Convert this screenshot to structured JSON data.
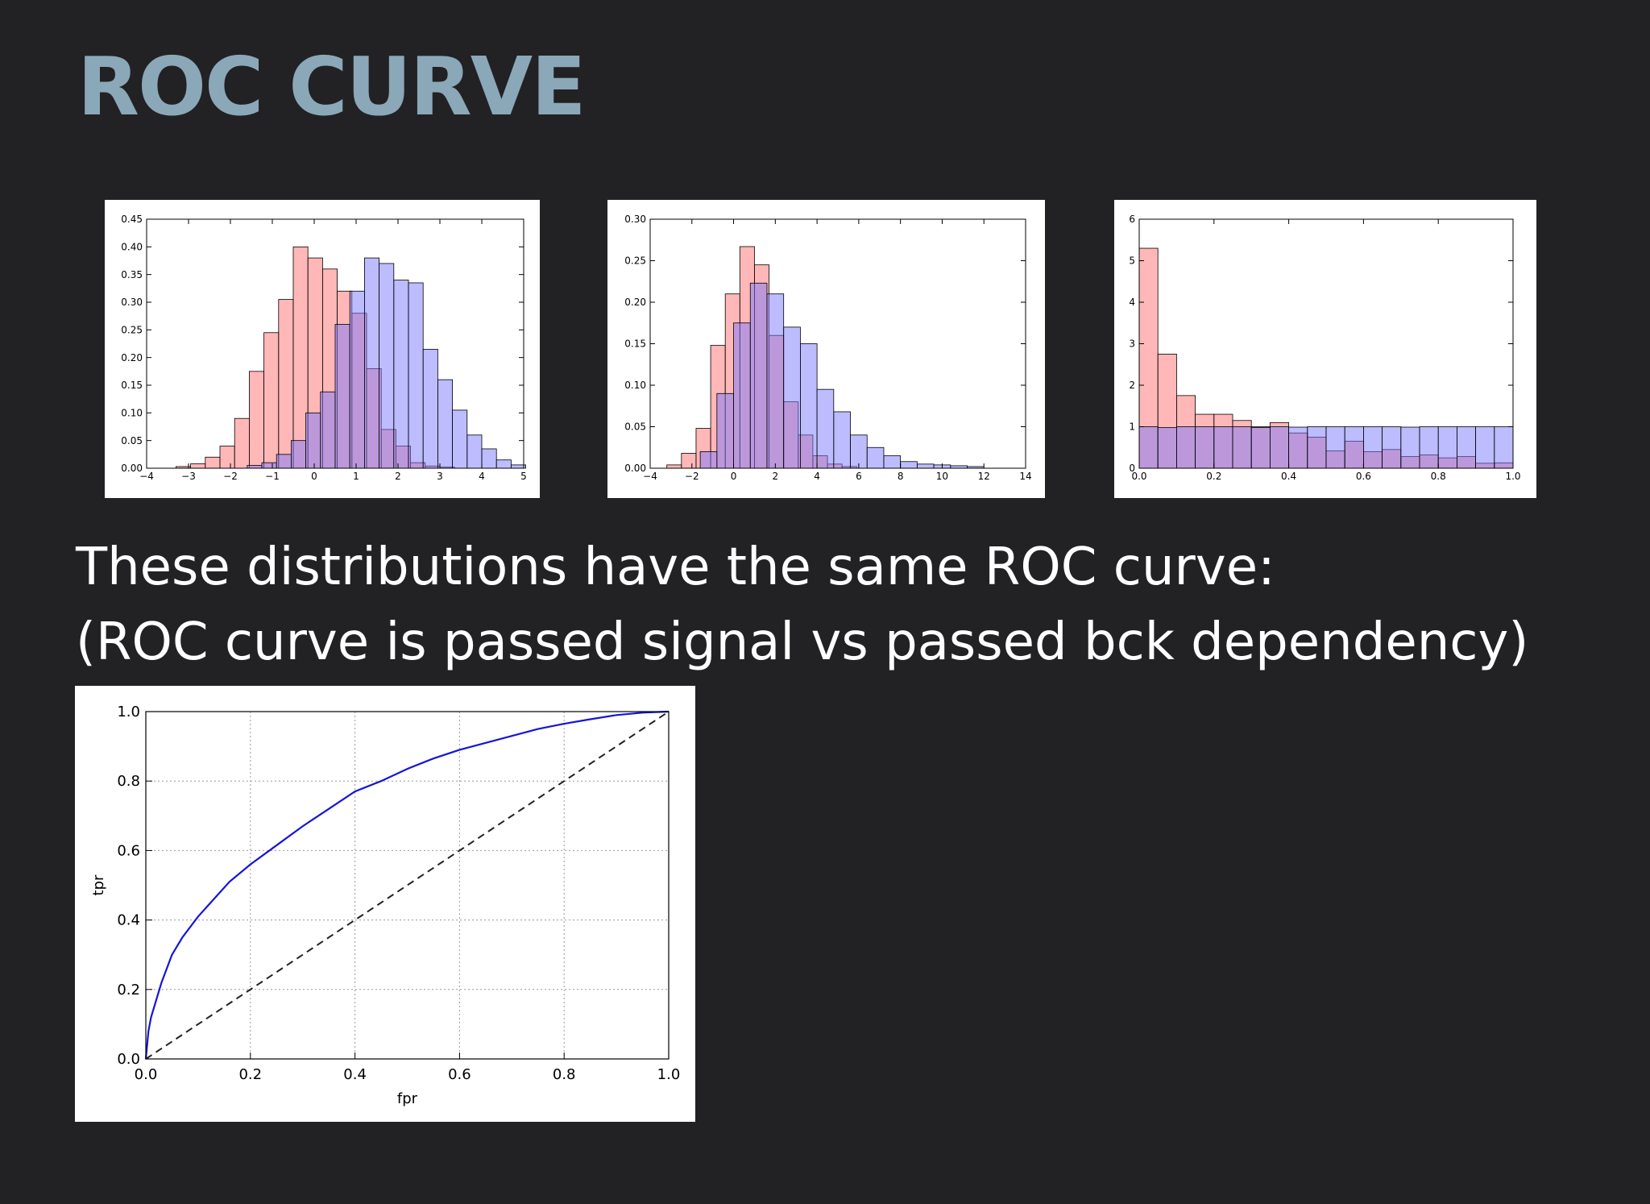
{
  "slide": {
    "title": "ROC CURVE",
    "caption_line1": "These distributions have the same ROC curve:",
    "caption_line2": "(ROC curve is passed signal vs passed bck dependency)"
  },
  "colors": {
    "background": "#222124",
    "title": "#8aa8b8",
    "red_series": "#ff7070",
    "blue_series": "#7a7aff",
    "overlap": "#7b3fc2",
    "roc_line": "#1515d8"
  },
  "chart_data": [
    {
      "type": "bar",
      "variant": "histogram",
      "xlim": [
        -4,
        5
      ],
      "ylim": [
        0,
        0.45
      ],
      "xticks": [
        "−4",
        "−3",
        "−2",
        "−1",
        "0",
        "1",
        "2",
        "3",
        "4",
        "5"
      ],
      "yticks": [
        "0.00",
        "0.05",
        "0.10",
        "0.15",
        "0.20",
        "0.25",
        "0.30",
        "0.35",
        "0.40",
        "0.45"
      ],
      "series": [
        {
          "color": "red",
          "bin_start": -3.3,
          "bin_width": 0.35,
          "values": [
            0.003,
            0.008,
            0.02,
            0.04,
            0.09,
            0.175,
            0.245,
            0.305,
            0.4,
            0.38,
            0.36,
            0.32,
            0.28,
            0.18,
            0.07,
            0.04,
            0.01,
            0.004,
            0.002
          ]
        },
        {
          "color": "blue",
          "bin_start": -1.6,
          "bin_width": 0.35,
          "values": [
            0.005,
            0.01,
            0.025,
            0.05,
            0.1,
            0.138,
            0.26,
            0.32,
            0.38,
            0.37,
            0.34,
            0.335,
            0.215,
            0.16,
            0.105,
            0.06,
            0.035,
            0.015,
            0.006
          ]
        }
      ]
    },
    {
      "type": "bar",
      "variant": "histogram",
      "xlim": [
        -4,
        14
      ],
      "ylim": [
        0,
        0.3
      ],
      "xticks": [
        "−4",
        "−2",
        "0",
        "2",
        "4",
        "6",
        "8",
        "10",
        "12",
        "14"
      ],
      "yticks": [
        "0.00",
        "0.05",
        "0.10",
        "0.15",
        "0.20",
        "0.25",
        "0.30"
      ],
      "series": [
        {
          "color": "red",
          "bin_start": -3.2,
          "bin_width": 0.7,
          "values": [
            0.004,
            0.018,
            0.048,
            0.148,
            0.21,
            0.267,
            0.245,
            0.16,
            0.08,
            0.04,
            0.015,
            0.005,
            0.002
          ]
        },
        {
          "color": "blue",
          "bin_start": -1.6,
          "bin_width": 0.8,
          "values": [
            0.02,
            0.09,
            0.175,
            0.223,
            0.21,
            0.17,
            0.15,
            0.095,
            0.068,
            0.04,
            0.025,
            0.015,
            0.008,
            0.005,
            0.004,
            0.003,
            0.002
          ]
        }
      ]
    },
    {
      "type": "bar",
      "variant": "histogram",
      "xlim": [
        0,
        1
      ],
      "ylim": [
        0,
        6
      ],
      "xticks": [
        "0.0",
        "0.2",
        "0.4",
        "0.6",
        "0.8",
        "1.0"
      ],
      "yticks": [
        "0",
        "1",
        "2",
        "3",
        "4",
        "5",
        "6"
      ],
      "series": [
        {
          "color": "red",
          "bin_start": 0,
          "bin_width": 0.05,
          "values": [
            5.3,
            2.75,
            1.75,
            1.3,
            1.3,
            1.15,
            1.0,
            1.1,
            0.85,
            0.75,
            0.42,
            0.65,
            0.4,
            0.45,
            0.28,
            0.32,
            0.25,
            0.28,
            0.12,
            0.13
          ]
        },
        {
          "color": "blue",
          "bin_start": 0,
          "bin_width": 0.05,
          "values": [
            1.0,
            0.98,
            1.0,
            1.0,
            1.0,
            1.0,
            0.98,
            1.0,
            0.99,
            1.0,
            1.0,
            1.0,
            1.0,
            1.0,
            0.99,
            1.0,
            1.0,
            1.0,
            1.0,
            1.0
          ]
        }
      ]
    },
    {
      "type": "line",
      "xlabel": "fpr",
      "ylabel": "tpr",
      "xlim": [
        0,
        1
      ],
      "ylim": [
        0,
        1
      ],
      "grid": true,
      "xticks": [
        "0.0",
        "0.2",
        "0.4",
        "0.6",
        "0.8",
        "1.0"
      ],
      "yticks": [
        "0.0",
        "0.2",
        "0.4",
        "0.6",
        "0.8",
        "1.0"
      ],
      "series": [
        {
          "style": "solid-blue",
          "x": [
            0,
            0.005,
            0.01,
            0.02,
            0.03,
            0.05,
            0.07,
            0.1,
            0.13,
            0.16,
            0.2,
            0.25,
            0.3,
            0.35,
            0.4,
            0.45,
            0.5,
            0.55,
            0.6,
            0.65,
            0.7,
            0.75,
            0.8,
            0.85,
            0.9,
            0.95,
            1.0
          ],
          "y": [
            0,
            0.08,
            0.12,
            0.17,
            0.22,
            0.3,
            0.35,
            0.41,
            0.46,
            0.51,
            0.56,
            0.615,
            0.67,
            0.72,
            0.77,
            0.8,
            0.835,
            0.865,
            0.89,
            0.91,
            0.93,
            0.95,
            0.965,
            0.978,
            0.99,
            0.997,
            1.0
          ]
        },
        {
          "style": "dashed-black",
          "x": [
            0,
            1
          ],
          "y": [
            0,
            1
          ]
        }
      ]
    }
  ]
}
